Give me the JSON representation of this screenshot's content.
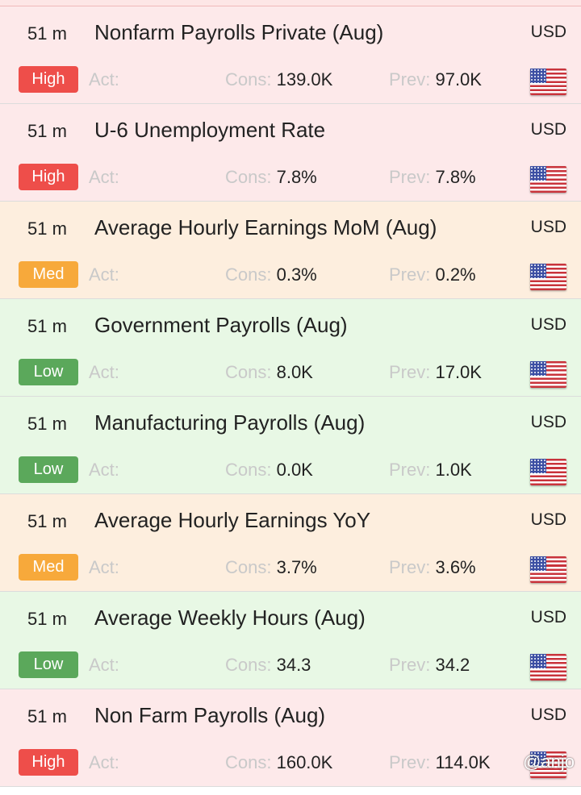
{
  "labels": {
    "act": "Act:",
    "cons": "Cons: ",
    "prev": "Prev: "
  },
  "events": [
    {
      "time": "51 m",
      "title": "Nonfarm Payrolls Private (Aug)",
      "currency": "USD",
      "importance": "High",
      "level": "high",
      "actual": "",
      "consensus": "139.0K",
      "previous": "97.0K"
    },
    {
      "time": "51 m",
      "title": "U-6 Unemployment Rate",
      "currency": "USD",
      "importance": "High",
      "level": "high",
      "actual": "",
      "consensus": "7.8%",
      "previous": "7.8%"
    },
    {
      "time": "51 m",
      "title": "Average Hourly Earnings MoM (Aug)",
      "currency": "USD",
      "importance": "Med",
      "level": "med",
      "actual": "",
      "consensus": "0.3%",
      "previous": "0.2%"
    },
    {
      "time": "51 m",
      "title": "Government Payrolls (Aug)",
      "currency": "USD",
      "importance": "Low",
      "level": "low",
      "actual": "",
      "consensus": "8.0K",
      "previous": "17.0K"
    },
    {
      "time": "51 m",
      "title": "Manufacturing Payrolls (Aug)",
      "currency": "USD",
      "importance": "Low",
      "level": "low",
      "actual": "",
      "consensus": "0.0K",
      "previous": "1.0K"
    },
    {
      "time": "51 m",
      "title": "Average Hourly Earnings YoY",
      "currency": "USD",
      "importance": "Med",
      "level": "med",
      "actual": "",
      "consensus": "3.7%",
      "previous": "3.6%"
    },
    {
      "time": "51 m",
      "title": "Average Weekly Hours (Aug)",
      "currency": "USD",
      "importance": "Low",
      "level": "low",
      "actual": "",
      "consensus": "34.3",
      "previous": "34.2"
    },
    {
      "time": "51 m",
      "title": "Non Farm Payrolls (Aug)",
      "currency": "USD",
      "importance": "High",
      "level": "high",
      "actual": "",
      "consensus": "160.0K",
      "previous": "114.0K"
    }
  ],
  "flag_icon": "us-flag-icon",
  "watermark": "@anjo",
  "colors": {
    "high_badge": "#ee4e4a",
    "med_badge": "#f7a93b",
    "low_badge": "#5ba85b",
    "high_row": "#fde9ea",
    "med_row": "#fdeede",
    "low_row": "#e8f8e5"
  }
}
